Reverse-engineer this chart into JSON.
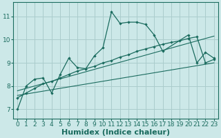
{
  "bg_color": "#cce8e8",
  "line_color": "#1a6b5e",
  "grid_color": "#aacccc",
  "xlabel": "Humidex (Indice chaleur)",
  "xlabel_fontsize": 8,
  "tick_fontsize": 6.5,
  "ylim": [
    6.6,
    11.6
  ],
  "xlim": [
    -0.5,
    23.5
  ],
  "yticks": [
    7,
    8,
    9,
    10,
    11
  ],
  "xticks": [
    0,
    1,
    2,
    3,
    4,
    5,
    6,
    7,
    8,
    9,
    10,
    11,
    12,
    13,
    14,
    15,
    16,
    17,
    18,
    19,
    20,
    21,
    22,
    23
  ],
  "line1_x": [
    0,
    1,
    2,
    3,
    4,
    5,
    6,
    7,
    8,
    9,
    10,
    11,
    12,
    13,
    14,
    15,
    16,
    17,
    20,
    21,
    22,
    23
  ],
  "line1_y": [
    7.0,
    8.0,
    8.3,
    8.35,
    7.7,
    8.5,
    9.2,
    8.8,
    8.75,
    9.3,
    9.65,
    11.2,
    10.7,
    10.75,
    10.75,
    10.65,
    10.2,
    9.5,
    10.2,
    9.0,
    9.45,
    9.2
  ],
  "line2_x": [
    0,
    1,
    2,
    3,
    4,
    5,
    6,
    7,
    8,
    9,
    10,
    11,
    12,
    13,
    14,
    15,
    16,
    17,
    18,
    19,
    20,
    21,
    22,
    23
  ],
  "line2_y": [
    7.5,
    7.7,
    7.9,
    8.1,
    8.2,
    8.35,
    8.5,
    8.65,
    8.75,
    8.85,
    9.0,
    9.1,
    9.25,
    9.35,
    9.5,
    9.6,
    9.7,
    9.8,
    9.88,
    9.95,
    10.05,
    10.12,
    9.0,
    9.15
  ],
  "line3_x": [
    0,
    23
  ],
  "line3_y": [
    7.8,
    10.15
  ],
  "line4_x": [
    0,
    23
  ],
  "line4_y": [
    7.6,
    9.0
  ]
}
